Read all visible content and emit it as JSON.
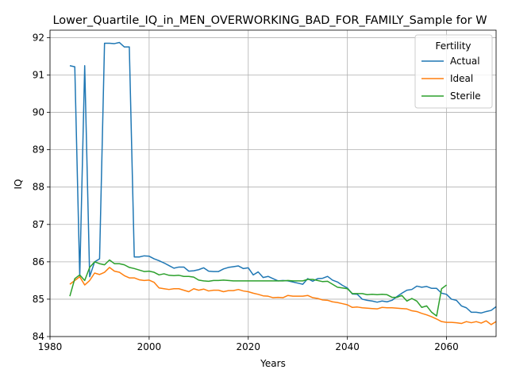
{
  "chart_data": {
    "type": "line",
    "title": "Lower_Quartile_IQ_in_MEN_OVERWORKING_BAD_FOR_FAMILY_Sample for W",
    "xlabel": "Years",
    "ylabel": "IQ",
    "xlim": [
      1980,
      2070
    ],
    "ylim": [
      84,
      92.2
    ],
    "xticks": [
      1980,
      2000,
      2020,
      2040,
      2060
    ],
    "yticks": [
      84,
      85,
      86,
      87,
      88,
      89,
      90,
      91,
      92
    ],
    "grid": true,
    "legend": {
      "title": "Fertility",
      "placement": "top-right"
    },
    "series": [
      {
        "name": "Actual",
        "color": "#1f77b4",
        "x": [
          1984,
          1985,
          1986,
          1987,
          1988,
          1989,
          1990,
          1991,
          1992,
          1993,
          1994,
          1995,
          1996,
          1997,
          1998,
          1999,
          2000,
          2001,
          2002,
          2003,
          2004,
          2005,
          2006,
          2007,
          2008,
          2009,
          2010,
          2011,
          2012,
          2013,
          2014,
          2015,
          2016,
          2017,
          2018,
          2019,
          2020,
          2021,
          2022,
          2023,
          2024,
          2025,
          2026,
          2027,
          2028,
          2029,
          2030,
          2031,
          2032,
          2033,
          2034,
          2035,
          2036,
          2037,
          2038,
          2039,
          2040,
          2041,
          2042,
          2043,
          2044,
          2045,
          2046,
          2047,
          2048,
          2049,
          2050,
          2051,
          2052,
          2053,
          2054,
          2055,
          2056,
          2057,
          2058,
          2059,
          2060,
          2061,
          2062,
          2063,
          2064,
          2065,
          2066,
          2067,
          2068,
          2069,
          2070
        ],
        "y": [
          91.25,
          91.22,
          85.6,
          91.25,
          85.6,
          86.0,
          86.08,
          91.85,
          91.85,
          91.84,
          91.87,
          91.75,
          91.75,
          86.13,
          86.13,
          86.16,
          86.15,
          86.08,
          86.03,
          85.97,
          85.9,
          85.83,
          85.86,
          85.86,
          85.75,
          85.76,
          85.79,
          85.84,
          85.75,
          85.74,
          85.74,
          85.81,
          85.85,
          85.87,
          85.89,
          85.82,
          85.84,
          85.65,
          85.73,
          85.58,
          85.61,
          85.55,
          85.49,
          85.5,
          85.49,
          85.46,
          85.43,
          85.4,
          85.55,
          85.48,
          85.55,
          85.56,
          85.61,
          85.51,
          85.46,
          85.37,
          85.3,
          85.14,
          85.13,
          85.0,
          84.97,
          84.95,
          84.92,
          84.95,
          84.93,
          84.97,
          85.07,
          85.16,
          85.24,
          85.26,
          85.35,
          85.32,
          85.34,
          85.29,
          85.29,
          85.16,
          85.13,
          85.0,
          84.97,
          84.82,
          84.77,
          84.65,
          84.65,
          84.63,
          84.67,
          84.7,
          84.8
        ]
      },
      {
        "name": "Ideal",
        "color": "#ff7f0e",
        "x": [
          1984,
          1985,
          1986,
          1987,
          1988,
          1989,
          1990,
          1991,
          1992,
          1993,
          1994,
          1995,
          1996,
          1997,
          1998,
          1999,
          2000,
          2001,
          2002,
          2003,
          2004,
          2005,
          2006,
          2007,
          2008,
          2009,
          2010,
          2011,
          2012,
          2013,
          2014,
          2015,
          2016,
          2017,
          2018,
          2019,
          2020,
          2021,
          2022,
          2023,
          2024,
          2025,
          2026,
          2027,
          2028,
          2029,
          2030,
          2031,
          2032,
          2033,
          2034,
          2035,
          2036,
          2037,
          2038,
          2039,
          2040,
          2041,
          2042,
          2043,
          2044,
          2045,
          2046,
          2047,
          2048,
          2049,
          2050,
          2051,
          2052,
          2053,
          2054,
          2055,
          2056,
          2057,
          2058,
          2059,
          2060,
          2061,
          2062,
          2063,
          2064,
          2065,
          2066,
          2067,
          2068,
          2069,
          2070
        ],
        "y": [
          85.4,
          85.5,
          85.6,
          85.38,
          85.5,
          85.7,
          85.66,
          85.72,
          85.85,
          85.75,
          85.72,
          85.63,
          85.57,
          85.57,
          85.52,
          85.5,
          85.51,
          85.45,
          85.3,
          85.28,
          85.26,
          85.28,
          85.28,
          85.24,
          85.2,
          85.28,
          85.24,
          85.27,
          85.22,
          85.24,
          85.24,
          85.2,
          85.23,
          85.23,
          85.26,
          85.22,
          85.2,
          85.16,
          85.13,
          85.09,
          85.08,
          85.04,
          85.05,
          85.04,
          85.1,
          85.08,
          85.08,
          85.08,
          85.1,
          85.04,
          85.02,
          84.98,
          84.97,
          84.93,
          84.91,
          84.88,
          84.85,
          84.78,
          84.79,
          84.77,
          84.76,
          84.75,
          84.74,
          84.78,
          84.77,
          84.77,
          84.76,
          84.75,
          84.74,
          84.69,
          84.67,
          84.62,
          84.58,
          84.53,
          84.47,
          84.4,
          84.38,
          84.38,
          84.37,
          84.35,
          84.4,
          84.37,
          84.4,
          84.36,
          84.42,
          84.32,
          84.4
        ]
      },
      {
        "name": "Sterile",
        "color": "#2ca02c",
        "x": [
          1984,
          1985,
          1986,
          1987,
          1988,
          1989,
          1990,
          1991,
          1992,
          1993,
          1994,
          1995,
          1996,
          1997,
          1998,
          1999,
          2000,
          2001,
          2002,
          2003,
          2004,
          2005,
          2006,
          2007,
          2008,
          2009,
          2010,
          2011,
          2012,
          2013,
          2014,
          2015,
          2016,
          2017,
          2018,
          2019,
          2020,
          2021,
          2022,
          2023,
          2024,
          2025,
          2026,
          2027,
          2028,
          2029,
          2030,
          2031,
          2032,
          2033,
          2034,
          2035,
          2036,
          2037,
          2038,
          2039,
          2040,
          2041,
          2042,
          2043,
          2044,
          2045,
          2046,
          2047,
          2048,
          2049,
          2050,
          2051,
          2052,
          2053,
          2054,
          2055,
          2056,
          2057,
          2058,
          2059,
          2060
        ],
        "y": [
          85.08,
          85.55,
          85.65,
          85.5,
          85.85,
          86.0,
          85.95,
          85.92,
          86.05,
          85.95,
          85.95,
          85.92,
          85.85,
          85.82,
          85.78,
          85.74,
          85.75,
          85.72,
          85.65,
          85.68,
          85.64,
          85.63,
          85.64,
          85.61,
          85.61,
          85.59,
          85.51,
          85.49,
          85.48,
          85.5,
          85.5,
          85.51,
          85.5,
          85.49,
          85.49,
          85.49,
          85.49,
          85.49,
          85.49,
          85.49,
          85.49,
          85.49,
          85.49,
          85.49,
          85.5,
          85.49,
          85.49,
          85.49,
          85.53,
          85.53,
          85.5,
          85.47,
          85.48,
          85.4,
          85.32,
          85.3,
          85.28,
          85.15,
          85.15,
          85.15,
          85.12,
          85.13,
          85.12,
          85.13,
          85.12,
          85.05,
          85.05,
          85.1,
          84.95,
          85.02,
          84.95,
          84.78,
          84.82,
          84.65,
          84.55,
          85.28,
          85.38
        ]
      }
    ]
  }
}
